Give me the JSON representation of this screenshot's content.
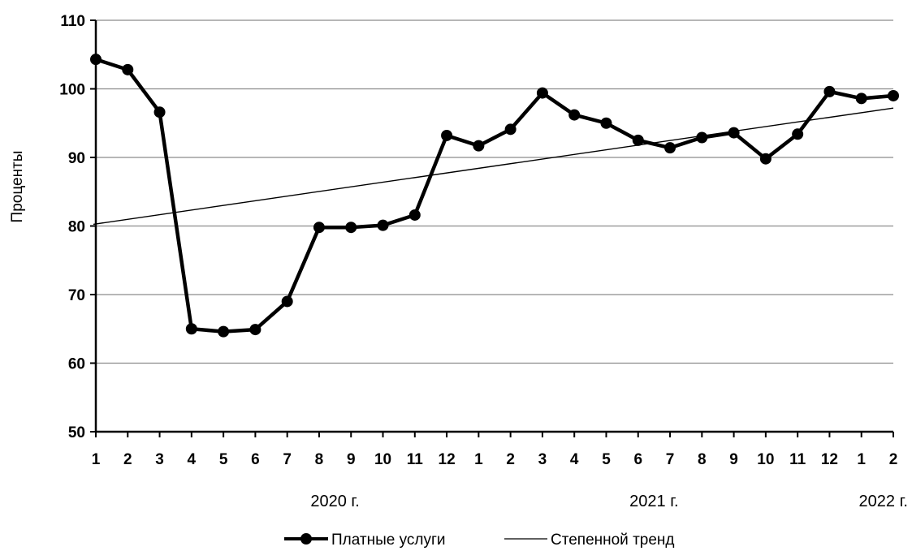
{
  "chart_data": {
    "type": "line",
    "title": "",
    "ylabel": "Проценты",
    "xlabel": "",
    "ylim": [
      50,
      110
    ],
    "yticks": [
      50,
      60,
      70,
      80,
      90,
      100,
      110
    ],
    "categories": [
      "1",
      "2",
      "3",
      "4",
      "5",
      "6",
      "7",
      "8",
      "9",
      "10",
      "11",
      "12",
      "1",
      "2",
      "3",
      "4",
      "5",
      "6",
      "7",
      "8",
      "9",
      "10",
      "11",
      "12",
      "1",
      "2"
    ],
    "year_labels": [
      {
        "label": "2020 г.",
        "at_index": 7.5
      },
      {
        "label": "2021 г.",
        "at_index": 17.5
      },
      {
        "label": "2022 г.",
        "at_index": 25
      }
    ],
    "series": [
      {
        "name": "Платные услуги",
        "style": "line-markers",
        "color": "#000000",
        "values": [
          104.3,
          102.8,
          96.6,
          65.0,
          64.6,
          64.9,
          69.0,
          79.8,
          79.8,
          80.1,
          81.6,
          93.2,
          91.7,
          94.1,
          99.4,
          96.2,
          95.0,
          92.5,
          91.4,
          92.9,
          93.6,
          89.8,
          93.4,
          99.6,
          98.6,
          99.0
        ]
      },
      {
        "name": "Степенной тренд",
        "style": "thin-line",
        "color": "#000000",
        "values": [
          80.3,
          null,
          null,
          null,
          null,
          null,
          null,
          null,
          null,
          null,
          null,
          null,
          null,
          null,
          null,
          null,
          null,
          null,
          null,
          null,
          null,
          null,
          null,
          null,
          null,
          97.2
        ]
      }
    ],
    "grid": true,
    "legend": "bottom"
  }
}
